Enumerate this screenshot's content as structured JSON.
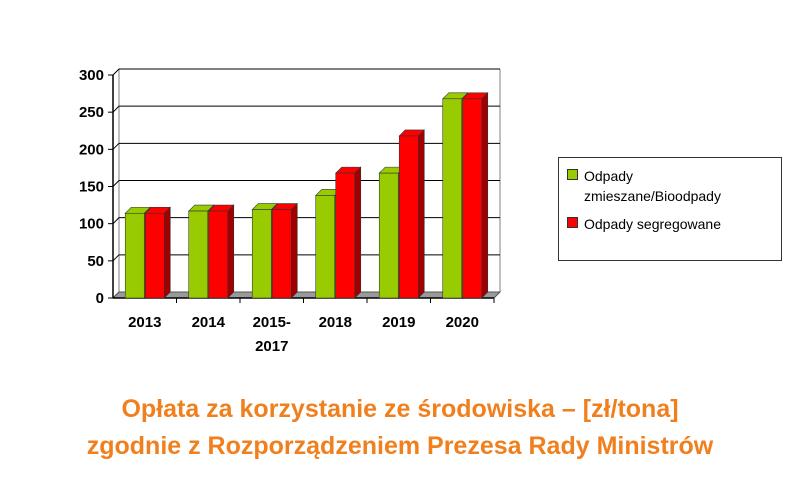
{
  "colors": {
    "series_1": "#99cc00",
    "series_1_dark": "#5e8500",
    "series_2": "#ff0000",
    "series_2_dark": "#a00000",
    "caption": "#f07f1e",
    "floor": "#9a9a9a"
  },
  "chart_data": {
    "type": "bar",
    "title": "",
    "xlabel": "",
    "ylabel": "",
    "categories": [
      [
        "2013"
      ],
      [
        "2014"
      ],
      [
        "2015-",
        "2017"
      ],
      [
        "2018"
      ],
      [
        "2019"
      ],
      [
        "2020"
      ]
    ],
    "series": [
      {
        "name": "Odpady zmieszane/Bioodpady",
        "values": [
          114,
          117,
          119,
          138,
          168,
          268
        ]
      },
      {
        "name": "Odpady segregowane",
        "values": [
          114,
          117,
          119,
          168,
          218,
          268
        ]
      }
    ],
    "ylim": [
      0,
      300
    ],
    "yticks": [
      0,
      50,
      100,
      150,
      200,
      250,
      300
    ],
    "grid": true,
    "style": "3d",
    "legend_position": "right"
  },
  "legend": {
    "items": [
      {
        "label_lines": [
          "Odpady",
          "zmieszane/Bioodpady"
        ]
      },
      {
        "label_lines": [
          "Odpady segregowane"
        ]
      }
    ]
  },
  "caption": {
    "line1": "Opłata za korzystanie ze środowiska – [zł/tona]",
    "line2": "zgodnie z Rozporządzeniem Prezesa Rady Ministrów"
  }
}
